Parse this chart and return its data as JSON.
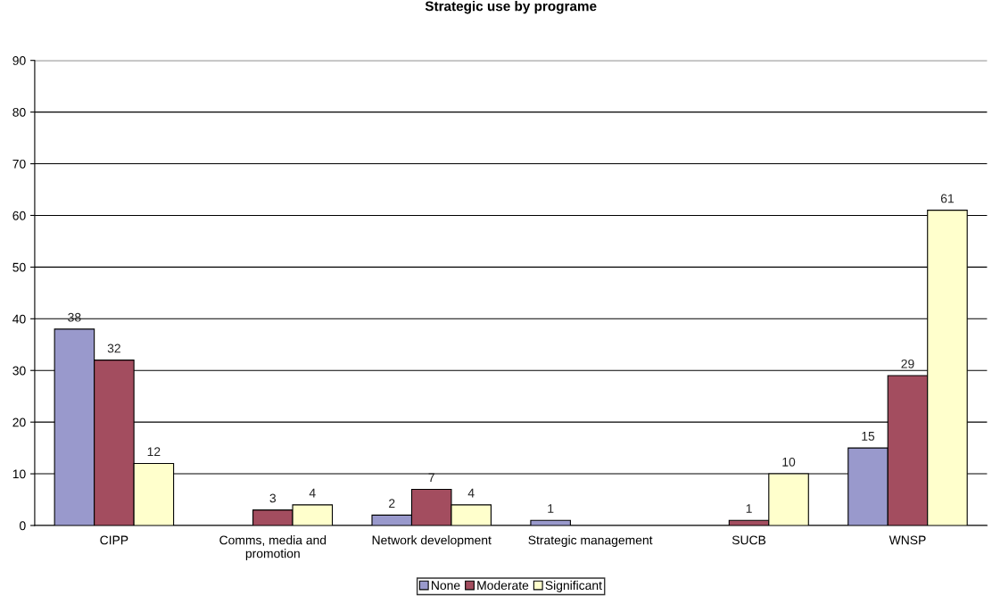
{
  "chart_data": {
    "type": "bar",
    "title": "Strategic use by programe",
    "categories": [
      "CIPP",
      "Comms, media and promotion",
      "Network development",
      "Strategic management",
      "SUCB",
      "WNSP"
    ],
    "series": [
      {
        "name": "None",
        "color": "#9999cc",
        "values": [
          38,
          null,
          2,
          1,
          null,
          15
        ]
      },
      {
        "name": "Moderate",
        "color": "#a34d5f",
        "values": [
          32,
          3,
          7,
          null,
          1,
          29
        ]
      },
      {
        "name": "Significant",
        "color": "#ffffcc",
        "values": [
          12,
          4,
          4,
          null,
          10,
          61
        ]
      }
    ],
    "ylim": [
      0,
      90
    ],
    "yticks": [
      0,
      10,
      20,
      30,
      40,
      50,
      60,
      70,
      80,
      90
    ],
    "grid": "y",
    "legend": "bottom",
    "data_labels": true
  }
}
